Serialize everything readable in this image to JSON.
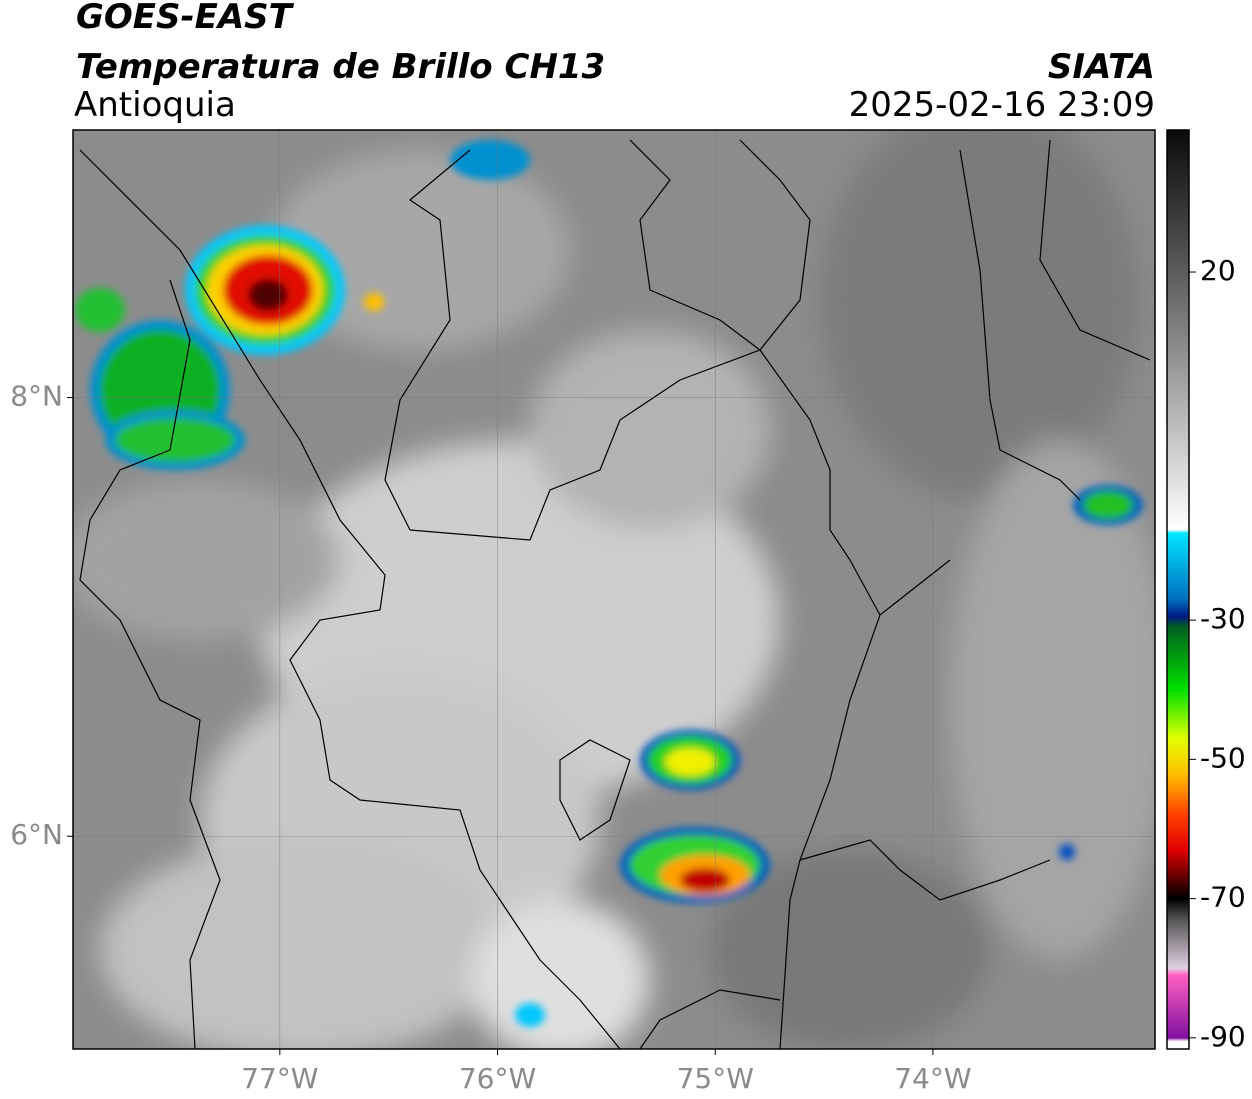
{
  "header": {
    "title": "GOES-EAST",
    "subtitle": "Temperatura de Brillo CH13",
    "region": "Antioquia",
    "source": "SIATA",
    "datetime": "2025-02-16 23:09"
  },
  "map": {
    "xlim": [
      -77.95,
      -72.98
    ],
    "ylim": [
      5.03,
      9.22
    ],
    "xticks": [
      {
        "value": -77,
        "label": "77°W"
      },
      {
        "value": -76,
        "label": "76°W"
      },
      {
        "value": -75,
        "label": "75°W"
      },
      {
        "value": -74,
        "label": "74°W"
      }
    ],
    "yticks": [
      {
        "value": 6,
        "label": "6°N"
      },
      {
        "value": 8,
        "label": "8°N"
      }
    ],
    "grid": true
  },
  "colorbar": {
    "lim": [
      -91.6,
      40.4
    ],
    "ticks": [
      20,
      -30,
      -50,
      -70,
      -90
    ],
    "colormap": [
      {
        "value": 40.4,
        "color": "#0a0a0a"
      },
      {
        "value": 20,
        "color": "#5c5c5c"
      },
      {
        "value": 0,
        "color": "#b4b4b4"
      },
      {
        "value": -17,
        "color": "#ffffff"
      },
      {
        "value": -17.5,
        "color": "#00e5ff"
      },
      {
        "value": -27,
        "color": "#0070c0"
      },
      {
        "value": -29.5,
        "color": "#001a80"
      },
      {
        "value": -31,
        "color": "#006020"
      },
      {
        "value": -40,
        "color": "#00e000"
      },
      {
        "value": -47,
        "color": "#e0ff00"
      },
      {
        "value": -52,
        "color": "#ffc000"
      },
      {
        "value": -58,
        "color": "#ff4000"
      },
      {
        "value": -63,
        "color": "#e00000"
      },
      {
        "value": -67,
        "color": "#600000"
      },
      {
        "value": -70,
        "color": "#000000"
      },
      {
        "value": -73,
        "color": "#555555"
      },
      {
        "value": -80,
        "color": "#e0d0e0"
      },
      {
        "value": -81,
        "color": "#ff60c0"
      },
      {
        "value": -90,
        "color": "#8010a0"
      },
      {
        "value": -90.5,
        "color": "#ffffff"
      },
      {
        "value": -91.6,
        "color": "#ffffff"
      }
    ]
  }
}
